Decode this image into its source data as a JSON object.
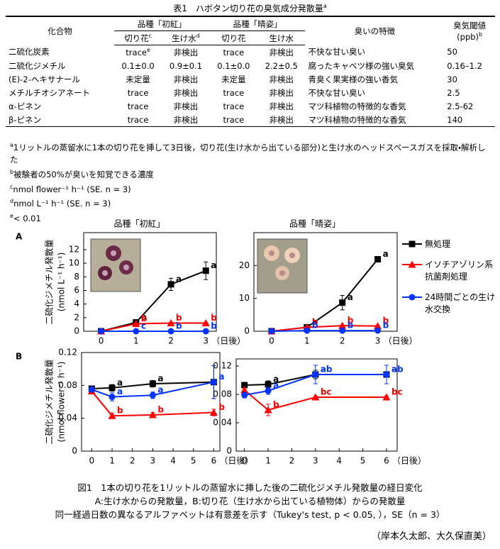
{
  "table": {
    "title": "表1　ハボタン切り花の臭気成分発散量",
    "title_sup": "a",
    "header": {
      "compound": "化合物",
      "cultivar1": "品種「初紅」",
      "cultivar2": "品種「晴姿」",
      "odor": "臭いの特徴",
      "threshold": "臭気閾値",
      "threshold_unit": "(ppb)",
      "threshold_sup": "b",
      "sub": [
        {
          "text": "切り花",
          "sup": "c"
        },
        {
          "text": "生け水",
          "sup": "d"
        },
        {
          "text": "切り花"
        },
        {
          "text": "生け水"
        }
      ]
    },
    "rows": [
      [
        "二硫化炭素",
        {
          "text": "trace",
          "sup": "e"
        },
        "非検出",
        "trace",
        "非検出",
        "不快な甘い臭い",
        "50"
      ],
      [
        "二硫化ジメチル",
        "0.1±0.0",
        "0.9±0.1",
        "0.1±0.0",
        "2.2±0.5",
        "腐ったキャベツ様の強い臭気",
        "0.16–1.2"
      ],
      [
        "(E)-2-ヘキサナール",
        "未定量",
        "非検出",
        "未定量",
        "非検出",
        "青臭く果実様の強い香気",
        "30"
      ],
      [
        "メチルチオシアネート",
        "trace",
        "非検出",
        "trace",
        "非検出",
        "不快な甘い臭い",
        "2.5"
      ],
      [
        "α-ピネン",
        "trace",
        "非検出",
        "trace",
        "非検出",
        "マツ科植物の特徴的な香気",
        "2.5-62"
      ],
      [
        "β-ピネン",
        "trace",
        "非検出",
        "trace",
        "非検出",
        "マツ科植物の特徴的な香気",
        "140"
      ]
    ]
  },
  "footnotes": [
    {
      "mark": "a",
      "text": "1リットルの蒸留水に1本の切り花を挿して3日後，切り花(生け水から出ている部分)と生け水のヘッドスペースガスを採取・解析した"
    },
    {
      "mark": "b",
      "text": "被験者の50%が臭いを知覚できる濃度"
    },
    {
      "mark": "c",
      "text": "nmol flower⁻¹ h⁻¹ (SE. n = 3)"
    },
    {
      "mark": "d",
      "text": "nmol L⁻¹ h⁻¹ (SE. n = 3)"
    },
    {
      "mark": "e",
      "text": "< 0.01"
    }
  ],
  "chart_data": [
    {
      "type": "line",
      "panel": "A",
      "title": "品種「初紅」",
      "ylabel": [
        "二硫化ジメチル発散量",
        "(nmol L⁻¹ h⁻¹)"
      ],
      "xlabel": "（日後）",
      "x": [
        0,
        1,
        2,
        3
      ],
      "xlim": [
        -0.5,
        3.3
      ],
      "xticks": [
        0,
        1,
        2,
        3
      ],
      "ylim": [
        0,
        14.5
      ],
      "yticks": [
        0,
        2,
        4,
        6,
        8,
        10,
        12
      ],
      "series": [
        {
          "name": "無処理",
          "color": "#000000",
          "marker": "square",
          "values": [
            0,
            1.3,
            6.9,
            8.9
          ],
          "errors": [
            0,
            0.2,
            0.9,
            1.3
          ],
          "letters": [
            null,
            "a",
            "a",
            "a"
          ]
        },
        {
          "name": "イソチアゾリン系抗菌剤処理",
          "color": "#ff0000",
          "marker": "triangle",
          "values": [
            0,
            1.1,
            1.2,
            1.2
          ],
          "errors": [
            0,
            0.1,
            0.1,
            0.1
          ],
          "letters": [
            null,
            "b",
            "b",
            "b"
          ]
        },
        {
          "name": "24時間ごとの生け水交換",
          "color": "#0033ff",
          "marker": "circle",
          "values": [
            0,
            0,
            0,
            0
          ],
          "errors": [
            0,
            0,
            0,
            0
          ],
          "letters": [
            null,
            "c",
            "b",
            "b"
          ]
        }
      ]
    },
    {
      "type": "line",
      "title": "品種「晴姿」",
      "xlabel": "（日後）",
      "legend": "right",
      "x": [
        0,
        1,
        2,
        3
      ],
      "xlim": [
        -0.5,
        3.55
      ],
      "xticks": [
        0,
        1,
        2,
        3
      ],
      "ylim": [
        0,
        30
      ],
      "yticks": [
        0,
        10,
        20
      ],
      "series": [
        {
          "name": "無処理",
          "color": "#000000",
          "marker": "square",
          "values": [
            0,
            1.2,
            8.7,
            21.9
          ],
          "errors": [
            0,
            0.3,
            2.2,
            0.5
          ],
          "letters": [
            null,
            "a",
            "a",
            "a"
          ]
        },
        {
          "name": "イソチアゾリン系抗菌剤処理",
          "color": "#ff0000",
          "marker": "triangle",
          "values": [
            0,
            1.2,
            1.7,
            1.6
          ],
          "errors": [
            0,
            0.2,
            0.2,
            0.2
          ],
          "letters": [
            null,
            "b",
            "b",
            "b"
          ]
        },
        {
          "name": "24時間ごとの生け水交換",
          "color": "#0033ff",
          "marker": "circle",
          "values": [
            0,
            0.2,
            0.2,
            0.2
          ],
          "errors": [
            0,
            0,
            0,
            0
          ],
          "letters": [
            null,
            "b",
            "b",
            "b"
          ]
        }
      ]
    },
    {
      "type": "line",
      "panel": "B",
      "ylabel": [
        "二硫化ジメチル発散量",
        "(nmol flower⁻¹ h⁻¹)"
      ],
      "xlabel": "（日後）",
      "x": [
        0,
        1,
        3,
        6
      ],
      "xlim": [
        -0.5,
        6.3
      ],
      "xticks": [
        0,
        1,
        2,
        3,
        4,
        5,
        6
      ],
      "ylim": [
        0,
        0.12
      ],
      "yticks": [
        0,
        0.04,
        0.08,
        0.12
      ],
      "series": [
        {
          "name": "無処理",
          "color": "#000000",
          "marker": "square",
          "values": [
            0.076,
            0.077,
            0.082,
            0.084
          ],
          "errors": [
            0.003,
            0.004,
            0.004,
            0.02
          ],
          "letters": [
            null,
            "a",
            "a",
            null
          ]
        },
        {
          "name": "イソチアゾリン系抗菌剤処理",
          "color": "#ff0000",
          "marker": "triangle",
          "values": [
            0.073,
            0.043,
            0.044,
            0.047
          ],
          "errors": [
            0.003,
            0.003,
            0.003,
            0.004
          ],
          "letters": [
            null,
            "b",
            "b",
            "b"
          ]
        },
        {
          "name": "24時間ごとの生け水交換",
          "color": "#0033ff",
          "marker": "circle",
          "values": [
            0.075,
            0.066,
            0.068,
            0.084
          ],
          "errors": [
            0.003,
            0.005,
            0.004,
            0.02
          ],
          "letters": [
            null,
            "a",
            "a",
            "a"
          ]
        }
      ]
    },
    {
      "type": "line",
      "xlabel": "（日後）",
      "x": [
        0,
        1,
        3,
        6
      ],
      "xlim": [
        -0.35,
        6.45
      ],
      "xticks": [
        0,
        1,
        2,
        3,
        4,
        5,
        6
      ],
      "ylim": [
        0,
        0.13
      ],
      "yticks": [
        0,
        0.04,
        0.08,
        0.12
      ],
      "series": [
        {
          "name": "無処理",
          "color": "#000000",
          "marker": "square",
          "values": [
            0.093,
            0.094,
            0.108,
            0.108
          ],
          "errors": [
            0.004,
            0.005,
            0.006,
            0.003
          ],
          "letters": [
            null,
            "a",
            "a",
            "a"
          ]
        },
        {
          "name": "イソチアゾリン系抗菌剤処理",
          "color": "#ff0000",
          "marker": "triangle",
          "values": [
            0.086,
            0.058,
            0.076,
            0.076
          ],
          "errors": [
            0.003,
            0.008,
            0.002,
            0.002
          ],
          "letters": [
            null,
            "b",
            "bc",
            "bc"
          ]
        },
        {
          "name": "24時間ごとの生け水交換",
          "color": "#0033ff",
          "marker": "circle",
          "values": [
            0.079,
            0.085,
            0.108,
            0.108
          ],
          "errors": [
            0.004,
            0.005,
            0.013,
            0.013
          ],
          "letters": [
            null,
            "a",
            "ab",
            "ab"
          ]
        }
      ]
    }
  ],
  "caption": {
    "title": "図1　1本の切り花を1リットルの蒸留水に挿した後の二硫化ジメチル発散量の経日変化",
    "lines": [
      "A:生け水からの発散量，B:切り花（生け水から出ている植物体）からの発散量",
      "同一経過日数の異なるアルファベットは有意差を示す（Tukey's test, p < 0.05, ），SE（n = 3）"
    ]
  },
  "author": "（岸本久太郎、大久保直美）"
}
